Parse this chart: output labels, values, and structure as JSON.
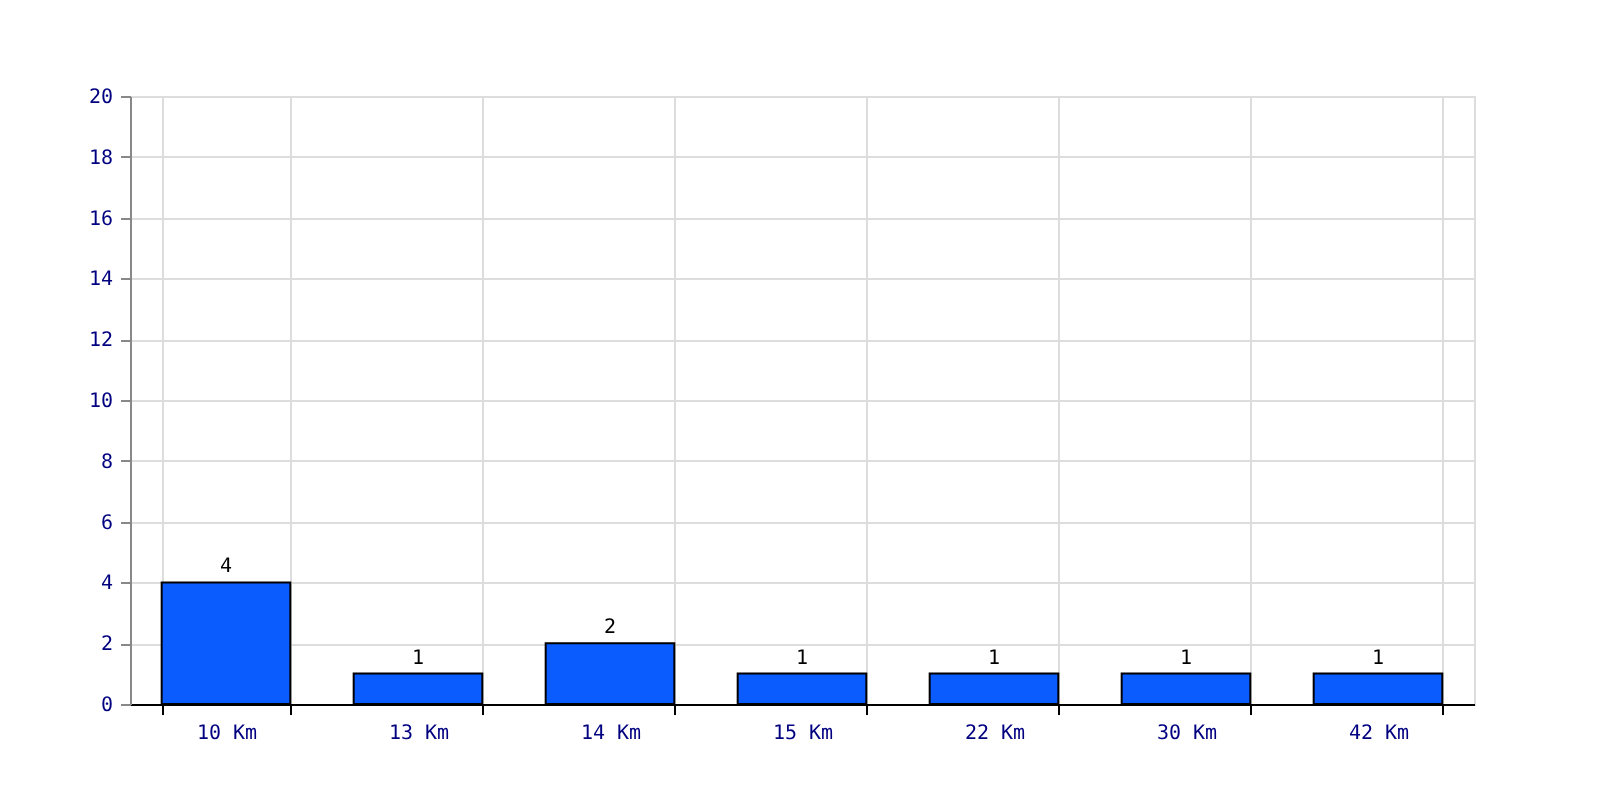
{
  "chart_data": {
    "type": "bar",
    "categories": [
      "10 Km",
      "13 Km",
      "14 Km",
      "15 Km",
      "22 Km",
      "30 Km",
      "42 Km"
    ],
    "values": [
      4,
      1,
      2,
      1,
      1,
      1,
      1
    ],
    "color": "#0a5cff",
    "ylim": [
      0,
      20
    ],
    "yticks": [
      0,
      2,
      4,
      6,
      8,
      10,
      12,
      14,
      16,
      18,
      20
    ],
    "grid": true,
    "data_labels": true
  }
}
